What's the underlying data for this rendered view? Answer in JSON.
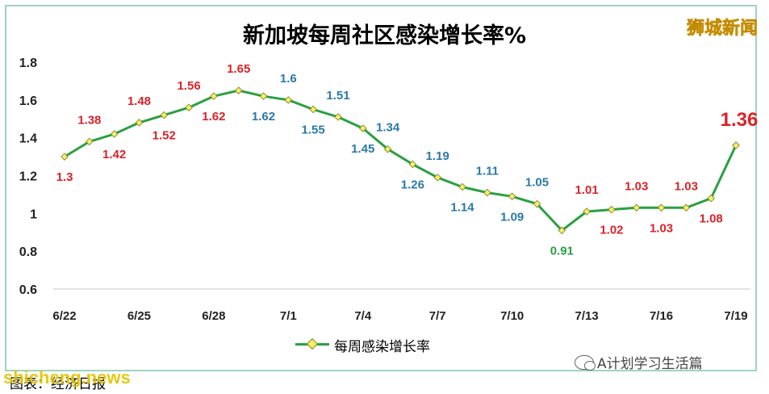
{
  "header": {
    "title": "新加坡每周社区感染增长率%",
    "brand": "狮城新闻"
  },
  "footer": {
    "source_label": "图表：经济日报",
    "watermark": "shicheng.news",
    "wechat_label": "A计划学习生活篇"
  },
  "colors": {
    "line": "#2aa042",
    "marker_fill": "#f3ee6a",
    "label_red": "#d9232a",
    "label_blue": "#2a79a8",
    "label_green": "#2aa042",
    "frame": "#9fd3c0"
  },
  "chart_data": {
    "type": "line",
    "title": "新加坡每周社区感染增长率%",
    "xlabel": "",
    "ylabel": "",
    "ylim": [
      0.6,
      1.8
    ],
    "y_ticks": [
      "0.6",
      "0.8",
      "1",
      "1.2",
      "1.4",
      "1.6",
      "1.8"
    ],
    "x": [
      "6/22",
      "6/23",
      "6/24",
      "6/25",
      "6/26",
      "6/27",
      "6/28",
      "6/29",
      "6/30",
      "7/1",
      "7/2",
      "7/3",
      "7/4",
      "7/5",
      "7/6",
      "7/7",
      "7/8",
      "7/9",
      "7/10",
      "7/11",
      "7/12",
      "7/13",
      "7/14",
      "7/15",
      "7/16",
      "7/17",
      "7/18",
      "7/19"
    ],
    "x_tick_labels": [
      "6/22",
      "6/25",
      "6/28",
      "7/1",
      "7/4",
      "7/7",
      "7/10",
      "7/13",
      "7/16",
      "7/19"
    ],
    "grid": false,
    "legend": "bottom",
    "series": [
      {
        "name": "每周感染增长率",
        "values": [
          1.3,
          1.38,
          1.42,
          1.48,
          1.52,
          1.56,
          1.62,
          1.65,
          1.62,
          1.6,
          1.55,
          1.51,
          1.45,
          1.34,
          1.26,
          1.19,
          1.14,
          1.11,
          1.09,
          1.05,
          0.91,
          1.01,
          1.02,
          1.03,
          1.03,
          1.03,
          1.08,
          1.36
        ],
        "data_labels": [
          "1.3",
          "1.38",
          "1.42",
          "1.48",
          "1.52",
          "1.56",
          "1.62",
          "1.65",
          "1.62",
          "1.6",
          "1.55",
          "1.51",
          "1.45",
          "1.34",
          "1.26",
          "1.19",
          "1.14",
          "1.11",
          "1.09",
          "1.05",
          "0.91",
          "1.01",
          "1.02",
          "1.03",
          "1.03",
          "1.03",
          "1.08",
          "1.36"
        ],
        "label_colors": [
          "red",
          "red",
          "red",
          "red",
          "red",
          "red",
          "red",
          "red",
          "blue",
          "blue",
          "blue",
          "blue",
          "blue",
          "blue",
          "blue",
          "blue",
          "blue",
          "blue",
          "blue",
          "blue",
          "green",
          "red",
          "red",
          "red",
          "red",
          "red",
          "red",
          "red"
        ]
      }
    ]
  }
}
